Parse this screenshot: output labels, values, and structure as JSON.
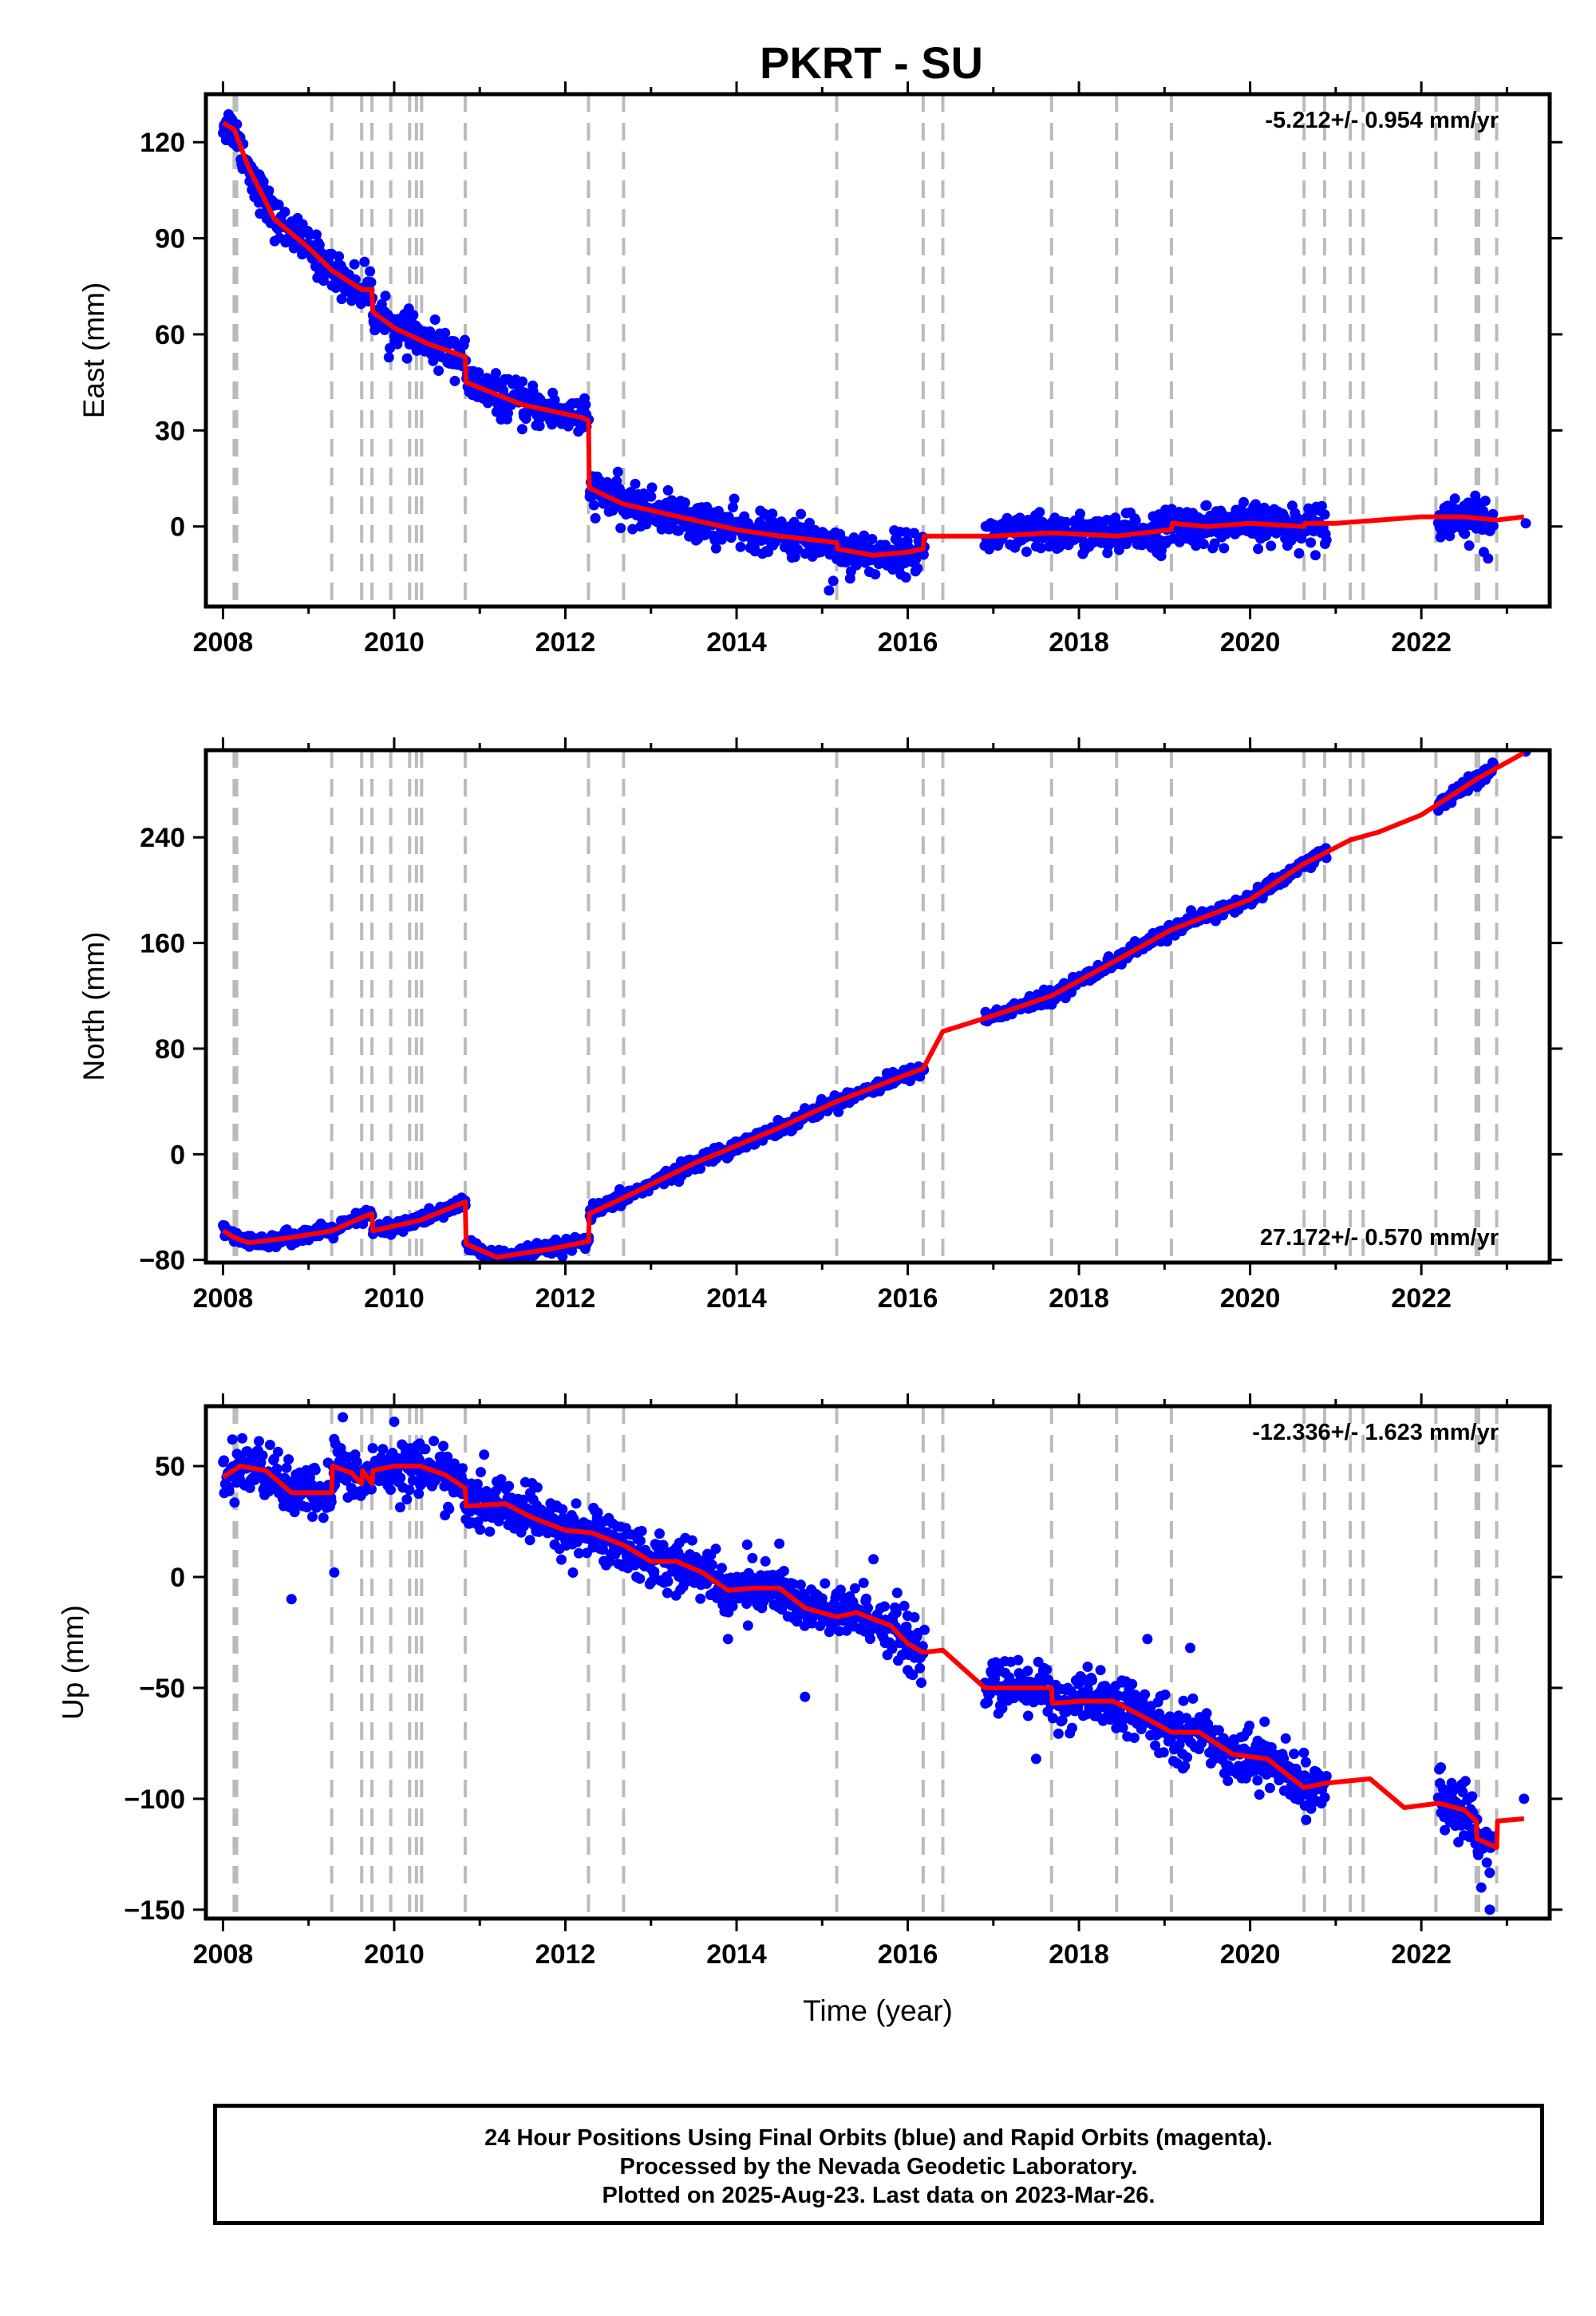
{
  "title": "PKRT - SU",
  "footer": {
    "line1": "24 Hour Positions Using Final Orbits (blue) and Rapid Orbits (magenta).",
    "line2": "Processed by the Nevada Geodetic Laboratory.",
    "line3": "Plotted on 2025-Aug-23. Last data on 2023-Mar-26."
  },
  "colors": {
    "data": "#0000ff",
    "model": "#ff0000",
    "events": "#bbbbbb",
    "frame": "#000000"
  },
  "event_lines": [
    2008.13,
    2008.16,
    2009.27,
    2009.62,
    2009.74,
    2009.96,
    2010.18,
    2010.26,
    2010.32,
    2010.83,
    2012.27,
    2012.68,
    2015.17,
    2016.18,
    2016.41,
    2017.68,
    2018.44,
    2019.08,
    2020.63,
    2020.87,
    2021.17,
    2021.32,
    2022.17,
    2022.64,
    2022.67,
    2022.88
  ],
  "chart_data": [
    {
      "type": "scatter",
      "panel": "east",
      "ylabel": "East (mm)",
      "xlabel": "",
      "rate_label": "-5.212+/- 0.954 mm/yr",
      "rate_position": "top-right",
      "xlim": [
        2007.8,
        2023.5
      ],
      "ylim": [
        -25,
        135
      ],
      "xticks": [
        2008,
        2010,
        2012,
        2014,
        2016,
        2018,
        2020,
        2022
      ],
      "yticks": [
        0,
        30,
        60,
        90,
        120
      ],
      "model": {
        "x": [
          2008.0,
          2008.13,
          2008.3,
          2008.6,
          2009.0,
          2009.27,
          2009.5,
          2009.62,
          2009.74,
          2009.75,
          2010.0,
          2010.4,
          2010.83,
          2010.84,
          2011.5,
          2012.2,
          2012.27,
          2012.28,
          2012.68,
          2013.0,
          2013.5,
          2014.0,
          2014.5,
          2015.17,
          2015.18,
          2015.6,
          2016.0,
          2016.18,
          2016.19,
          2016.41,
          2017.0,
          2017.68,
          2018.44,
          2019.08,
          2019.09,
          2019.5,
          2020.0,
          2020.63,
          2020.64,
          2021.0,
          2021.5,
          2022.0,
          2022.5,
          2022.88,
          2023.2
        ],
        "y": [
          126,
          124,
          112,
          96,
          87,
          80,
          76,
          74,
          74,
          67,
          62,
          57,
          53,
          45,
          38,
          34,
          33,
          12,
          7,
          5,
          2,
          -1,
          -3,
          -5,
          -7,
          -9,
          -8,
          -7,
          -3,
          -3,
          -3,
          -2,
          -3,
          -1,
          1,
          0,
          1,
          0,
          1,
          1,
          2,
          3,
          3,
          2,
          3
        ],
        "breaks": [
          2008.13,
          2009.74,
          2010.83,
          2012.27,
          2015.17,
          2016.18,
          2019.08,
          2020.63
        ]
      },
      "data_segments": [
        [
          2008.0,
          2016.2
        ],
        [
          2016.9,
          2020.9
        ],
        [
          2022.2,
          2022.85
        ]
      ],
      "data_scatter_mm": 3.0,
      "outliers": [
        [
          2015.08,
          -20
        ],
        [
          2015.13,
          -17
        ],
        [
          2016.09,
          -14
        ],
        [
          2022.78,
          -10
        ],
        [
          2022.73,
          -8
        ],
        [
          2023.22,
          1
        ]
      ]
    },
    {
      "type": "scatter",
      "panel": "north",
      "ylabel": "North (mm)",
      "xlabel": "",
      "rate_label": "27.172+/- 0.570 mm/yr",
      "rate_position": "bottom-right",
      "xlim": [
        2007.8,
        2023.5
      ],
      "ylim": [
        -82,
        306
      ],
      "xticks": [
        2008,
        2010,
        2012,
        2014,
        2016,
        2018,
        2020,
        2022
      ],
      "yticks": [
        -80,
        0,
        80,
        160,
        240
      ],
      "model": {
        "x": [
          2008.0,
          2008.13,
          2008.3,
          2008.8,
          2009.27,
          2009.62,
          2009.74,
          2009.75,
          2010.3,
          2010.83,
          2010.84,
          2011.2,
          2011.8,
          2012.27,
          2012.28,
          2012.68,
          2013.5,
          2014.5,
          2015.17,
          2016.18,
          2016.41,
          2017.0,
          2017.68,
          2018.44,
          2019.08,
          2020.0,
          2020.63,
          2021.17,
          2021.5,
          2022.0,
          2022.67,
          2023.2
        ],
        "y": [
          -58,
          -63,
          -67,
          -63,
          -58,
          -48,
          -45,
          -58,
          -50,
          -36,
          -68,
          -78,
          -72,
          -66,
          -45,
          -33,
          -7,
          20,
          40,
          65,
          93,
          105,
          120,
          147,
          170,
          193,
          220,
          238,
          244,
          257,
          285,
          304
        ],
        "breaks": [
          2009.74,
          2010.83,
          2012.27
        ]
      },
      "data_segments": [
        [
          2008.0,
          2016.2
        ],
        [
          2016.9,
          2020.9
        ],
        [
          2022.2,
          2022.85
        ]
      ],
      "data_scatter_mm": 2.5,
      "outliers": [
        [
          2023.22,
          305
        ]
      ]
    },
    {
      "type": "scatter",
      "panel": "up",
      "ylabel": "Up (mm)",
      "xlabel": "Time (year)",
      "rate_label": "-12.336+/- 1.623 mm/yr",
      "rate_position": "top-right",
      "xlim": [
        2007.8,
        2023.5
      ],
      "ylim": [
        -154,
        77
      ],
      "xticks": [
        2008,
        2010,
        2012,
        2014,
        2016,
        2018,
        2020,
        2022
      ],
      "yticks": [
        -150,
        -100,
        -50,
        0,
        50
      ],
      "model": {
        "x": [
          2008.0,
          2008.2,
          2008.5,
          2008.8,
          2009.1,
          2009.27,
          2009.28,
          2009.5,
          2009.62,
          2009.63,
          2009.74,
          2009.75,
          2010.0,
          2010.3,
          2010.6,
          2010.83,
          2010.84,
          2011.3,
          2011.6,
          2012.0,
          2012.3,
          2012.7,
          2013.0,
          2013.3,
          2013.6,
          2013.9,
          2014.2,
          2014.5,
          2014.8,
          2015.17,
          2015.4,
          2015.8,
          2016.0,
          2016.18,
          2016.41,
          2016.9,
          2017.3,
          2017.68,
          2017.69,
          2018.0,
          2018.4,
          2018.8,
          2019.08,
          2019.4,
          2019.8,
          2020.2,
          2020.63,
          2020.87,
          2021.4,
          2021.8,
          2022.2,
          2022.5,
          2022.64,
          2022.65,
          2022.88,
          2022.89,
          2023.2
        ],
        "y": [
          45,
          50,
          48,
          38,
          38,
          38,
          50,
          47,
          42,
          48,
          42,
          48,
          50,
          50,
          46,
          40,
          32,
          33,
          27,
          21,
          20,
          14,
          7,
          7,
          2,
          -6,
          -5,
          -5,
          -14,
          -18,
          -16,
          -22,
          -30,
          -34,
          -33,
          -50,
          -50,
          -50,
          -57,
          -56,
          -56,
          -64,
          -70,
          -70,
          -80,
          -82,
          -95,
          -93,
          -91,
          -104,
          -102,
          -105,
          -110,
          -118,
          -122,
          -110,
          -109
        ],
        "breaks": [
          2009.27,
          2009.62,
          2009.74,
          2010.83,
          2017.68,
          2022.64,
          2022.88
        ]
      },
      "data_segments": [
        [
          2008.0,
          2016.2
        ],
        [
          2016.9,
          2020.9
        ],
        [
          2022.2,
          2022.85
        ]
      ],
      "data_scatter_mm": 6.0,
      "outliers": [
        [
          2009.4,
          72
        ],
        [
          2010.0,
          70
        ],
        [
          2014.8,
          -54
        ],
        [
          2008.8,
          -10
        ],
        [
          2009.3,
          2
        ],
        [
          2019.3,
          -32
        ],
        [
          2017.5,
          -82
        ],
        [
          2016.0,
          -42
        ],
        [
          2013.9,
          -28
        ],
        [
          2022.8,
          -150
        ],
        [
          2022.7,
          -140
        ],
        [
          2023.2,
          -100
        ],
        [
          2015.6,
          8
        ],
        [
          2014.5,
          15
        ],
        [
          2018.8,
          -28
        ]
      ]
    }
  ]
}
